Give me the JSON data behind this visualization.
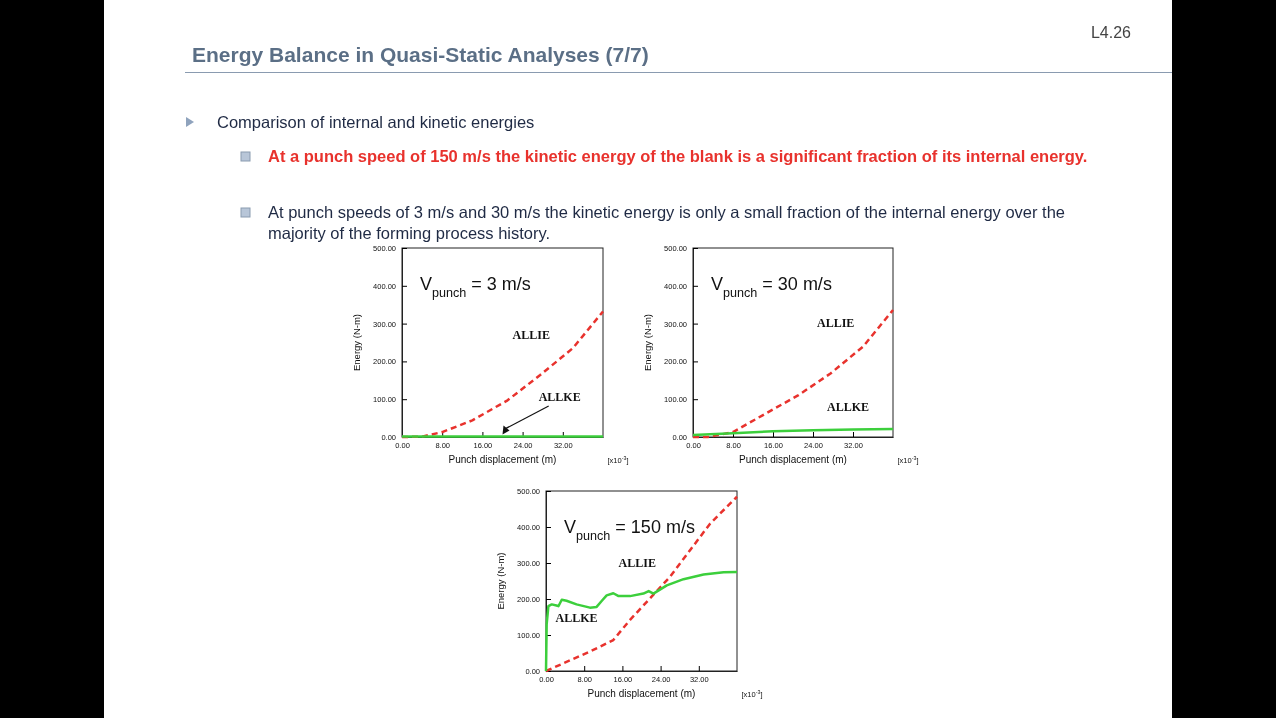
{
  "chart_data": [
    {
      "type": "other",
      "title": "Energy Balance in Quasi-Static Analyses (7/7)",
      "annotations": [
        "L4.26",
        "Comparison of internal and kinetic energies",
        "At a punch speed of 150 m/s the kinetic energy of the blank is a significant fraction of its internal energy.",
        "At punch speeds of 3 m/s and 30 m/s the kinetic energy is only a small fraction of the internal energy over the majority of the forming process history."
      ]
    },
    {
      "type": "line",
      "title": "V$_{punch}$ = 3 m/s",
      "xlabel": "Punch displacement (m)",
      "ylabel": "Energy (N-m)",
      "annotations": [
        "[x10$^{-3}$]"
      ],
      "xlim": [
        0,
        40
      ],
      "ylim": [
        0,
        500
      ],
      "xticks": [
        {
          "value": 0,
          "label": "0.00"
        },
        {
          "value": 8,
          "label": "8.00"
        },
        {
          "value": 16,
          "label": "16.00"
        },
        {
          "value": 24,
          "label": "24.00"
        },
        {
          "value": 32,
          "label": "32.00"
        }
      ],
      "yticks": [
        {
          "value": 0,
          "label": "0.00"
        },
        {
          "value": 100,
          "label": "100.00"
        },
        {
          "value": 200,
          "label": "200.00"
        },
        {
          "value": 300,
          "label": "300.00"
        },
        {
          "value": 400,
          "label": "400.00"
        },
        {
          "value": 500,
          "label": "500.00"
        }
      ],
      "series": [
        {
          "name": "ALLIE",
          "color": "#e8322d",
          "line_style": "dashed",
          "x": [
            0,
            4,
            8,
            14,
            21,
            27.5,
            34,
            40
          ],
          "values": [
            0,
            1,
            13,
            44,
            97,
            164,
            235,
            332
          ]
        },
        {
          "name": "ALLKE",
          "color": "#3ccf3c",
          "line_style": "solid",
          "x": [
            0,
            10,
            20,
            30,
            40
          ],
          "values": [
            1,
            1,
            1,
            1,
            1
          ]
        }
      ]
    },
    {
      "type": "line",
      "title": "V$_{punch}$ = 30 m/s",
      "xlabel": "Punch displacement (m)",
      "ylabel": "Energy (N-m)",
      "annotations": [
        "[x10$^{-3}$]"
      ],
      "xlim": [
        0,
        40
      ],
      "ylim": [
        0,
        500
      ],
      "xticks": [
        {
          "value": 0,
          "label": "0.00"
        },
        {
          "value": 8,
          "label": "8.00"
        },
        {
          "value": 16,
          "label": "16.00"
        },
        {
          "value": 24,
          "label": "24.00"
        },
        {
          "value": 32,
          "label": "32.00"
        }
      ],
      "yticks": [
        {
          "value": 0,
          "label": "0.00"
        },
        {
          "value": 100,
          "label": "100.00"
        },
        {
          "value": 200,
          "label": "200.00"
        },
        {
          "value": 300,
          "label": "300.00"
        },
        {
          "value": 400,
          "label": "400.00"
        },
        {
          "value": 500,
          "label": "500.00"
        }
      ],
      "series": [
        {
          "name": "ALLIE",
          "color": "#e8322d",
          "line_style": "dashed",
          "x": [
            0,
            3,
            8,
            14,
            21,
            27.5,
            34,
            40
          ],
          "values": [
            0,
            0,
            13,
            58,
            110,
            168,
            239,
            336
          ]
        },
        {
          "name": "ALLKE",
          "color": "#3ccf3c",
          "line_style": "solid",
          "x": [
            0,
            8,
            16,
            24,
            32,
            40
          ],
          "values": [
            5,
            10,
            15,
            18,
            20,
            21
          ]
        }
      ]
    },
    {
      "type": "line",
      "title": "V$_{punch}$ = 150 m/s",
      "xlabel": "Punch displacement (m)",
      "ylabel": "Energy (N-m)",
      "annotations": [
        "[x10$^{-3}$]"
      ],
      "xlim": [
        0,
        40
      ],
      "ylim": [
        0,
        500
      ],
      "xticks": [
        {
          "value": 0,
          "label": "0.00"
        },
        {
          "value": 8,
          "label": "8.00"
        },
        {
          "value": 16,
          "label": "16.00"
        },
        {
          "value": 24,
          "label": "24.00"
        },
        {
          "value": 32,
          "label": "32.00"
        }
      ],
      "yticks": [
        {
          "value": 0,
          "label": "0.00"
        },
        {
          "value": 100,
          "label": "100.00"
        },
        {
          "value": 200,
          "label": "200.00"
        },
        {
          "value": 300,
          "label": "300.00"
        },
        {
          "value": 400,
          "label": "400.00"
        },
        {
          "value": 500,
          "label": "500.00"
        }
      ],
      "series": [
        {
          "name": "ALLIE",
          "color": "#e8322d",
          "line_style": "dashed",
          "x": [
            0,
            9.2,
            14.1,
            17.6,
            21.8,
            26,
            30.2,
            34.4,
            40
          ],
          "values": [
            0,
            54,
            86,
            142,
            202,
            262,
            336,
            410,
            484
          ]
        },
        {
          "name": "ALLKE",
          "color": "#3ccf3c",
          "line_style": "solid",
          "x": [
            0,
            0.14,
            0.5,
            1.2,
            2.2,
            2.6,
            3.3,
            4.3,
            6.4,
            9.2,
            10.6,
            11.7,
            12.7,
            14.1,
            15.2,
            17.6,
            20.4,
            21.5,
            22.5,
            25.3,
            28.8,
            33,
            37.2,
            40
          ],
          "values": [
            0,
            130,
            180,
            185,
            182,
            180,
            198,
            195,
            185,
            176,
            178,
            195,
            210,
            216,
            208,
            208,
            215,
            222,
            215,
            238,
            255,
            268,
            274,
            275
          ]
        }
      ]
    }
  ]
}
